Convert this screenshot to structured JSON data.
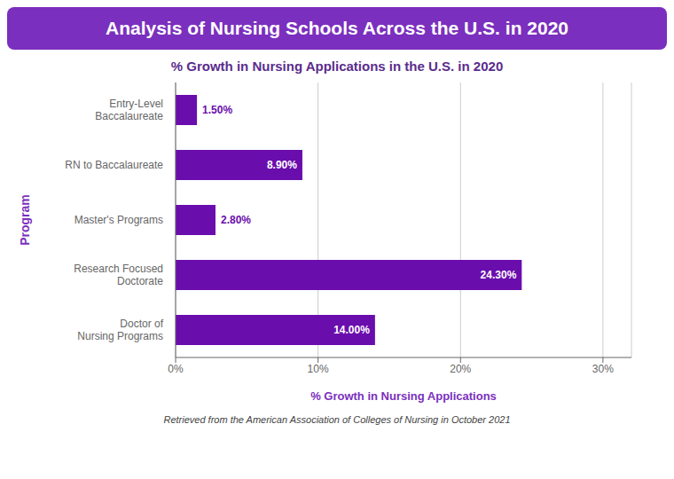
{
  "chart_data": {
    "type": "bar",
    "orientation": "horizontal",
    "title": "Analysis of Nursing Schools Across the U.S. in 2020",
    "subtitle": "% Growth in Nursing Applications in the U.S. in 2020",
    "categories": [
      "Entry-Level\nBaccalaureate",
      "RN to Baccalaureate",
      "Master's Programs",
      "Research Focused\nDoctorate",
      "Doctor of\nNursing Programs"
    ],
    "values": [
      1.5,
      8.9,
      2.8,
      24.3,
      14.0
    ],
    "value_labels": [
      "1.50%",
      "8.90%",
      "2.80%",
      "24.30%",
      "14.00%"
    ],
    "data_labels": true,
    "color": "#6A0DAD",
    "xlabel": "% Growth in Nursing Applications",
    "ylabel": "Program",
    "xlim": [
      0,
      32
    ],
    "xticks": [
      {
        "value": 0,
        "label": "0%"
      },
      {
        "value": 10,
        "label": "10%"
      },
      {
        "value": 20,
        "label": "20%"
      },
      {
        "value": 30,
        "label": "30%"
      }
    ],
    "grid": true,
    "annotations": [
      "Retrieved from the American Association of Colleges of Nursing in October 2021"
    ]
  }
}
